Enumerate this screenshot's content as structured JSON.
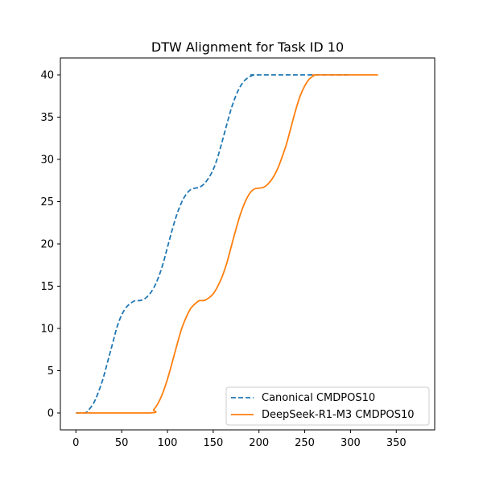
{
  "chart_data": {
    "type": "line",
    "title": "DTW Alignment for Task ID 10",
    "xlabel": "",
    "ylabel": "",
    "xlim": [
      -17,
      392
    ],
    "ylim": [
      -2,
      42
    ],
    "xticks": [
      0,
      50,
      100,
      150,
      200,
      250,
      300,
      350
    ],
    "yticks": [
      0,
      5,
      10,
      15,
      20,
      25,
      30,
      35,
      40
    ],
    "grid": false,
    "legend_position": "lower-right",
    "series": [
      {
        "name": "Canonical CMDPOS10",
        "color": "#1f77b4",
        "style": "dashed",
        "points": [
          [
            0,
            0
          ],
          [
            10,
            0
          ],
          [
            15,
            0.5
          ],
          [
            20,
            1.3
          ],
          [
            25,
            2.6
          ],
          [
            30,
            4.2
          ],
          [
            35,
            6.2
          ],
          [
            40,
            8.2
          ],
          [
            45,
            10.2
          ],
          [
            50,
            11.6
          ],
          [
            55,
            12.5
          ],
          [
            60,
            13.0
          ],
          [
            65,
            13.3
          ],
          [
            70,
            13.3
          ],
          [
            75,
            13.5
          ],
          [
            80,
            14.0
          ],
          [
            85,
            14.8
          ],
          [
            90,
            16.0
          ],
          [
            95,
            17.6
          ],
          [
            100,
            19.6
          ],
          [
            105,
            21.6
          ],
          [
            110,
            23.4
          ],
          [
            115,
            24.8
          ],
          [
            120,
            25.8
          ],
          [
            125,
            26.4
          ],
          [
            130,
            26.6
          ],
          [
            135,
            26.7
          ],
          [
            140,
            27.1
          ],
          [
            145,
            27.8
          ],
          [
            150,
            28.8
          ],
          [
            155,
            30.3
          ],
          [
            160,
            32.2
          ],
          [
            165,
            34.2
          ],
          [
            170,
            36.1
          ],
          [
            175,
            37.6
          ],
          [
            180,
            38.7
          ],
          [
            185,
            39.4
          ],
          [
            190,
            39.8
          ],
          [
            195,
            40
          ],
          [
            200,
            40
          ],
          [
            300,
            40
          ]
        ]
      },
      {
        "name": "DeepSeek-R1-M3 CMDPOS10",
        "color": "#ff7f0e",
        "style": "solid",
        "points": [
          [
            0,
            0
          ],
          [
            80,
            0
          ],
          [
            85,
            0.4
          ],
          [
            90,
            1.2
          ],
          [
            95,
            2.4
          ],
          [
            100,
            4.0
          ],
          [
            105,
            5.9
          ],
          [
            110,
            7.9
          ],
          [
            115,
            9.8
          ],
          [
            120,
            11.2
          ],
          [
            125,
            12.3
          ],
          [
            130,
            12.9
          ],
          [
            135,
            13.3
          ],
          [
            140,
            13.3
          ],
          [
            145,
            13.6
          ],
          [
            150,
            14.1
          ],
          [
            155,
            15.0
          ],
          [
            160,
            16.2
          ],
          [
            165,
            17.8
          ],
          [
            170,
            19.8
          ],
          [
            175,
            21.8
          ],
          [
            180,
            23.6
          ],
          [
            185,
            25.0
          ],
          [
            190,
            26.0
          ],
          [
            195,
            26.5
          ],
          [
            200,
            26.6
          ],
          [
            205,
            26.7
          ],
          [
            210,
            27.1
          ],
          [
            215,
            27.8
          ],
          [
            220,
            28.8
          ],
          [
            225,
            30.2
          ],
          [
            230,
            31.8
          ],
          [
            235,
            33.8
          ],
          [
            240,
            35.8
          ],
          [
            245,
            37.5
          ],
          [
            250,
            38.7
          ],
          [
            255,
            39.5
          ],
          [
            260,
            39.9
          ],
          [
            265,
            40
          ],
          [
            330,
            40
          ]
        ]
      }
    ]
  }
}
